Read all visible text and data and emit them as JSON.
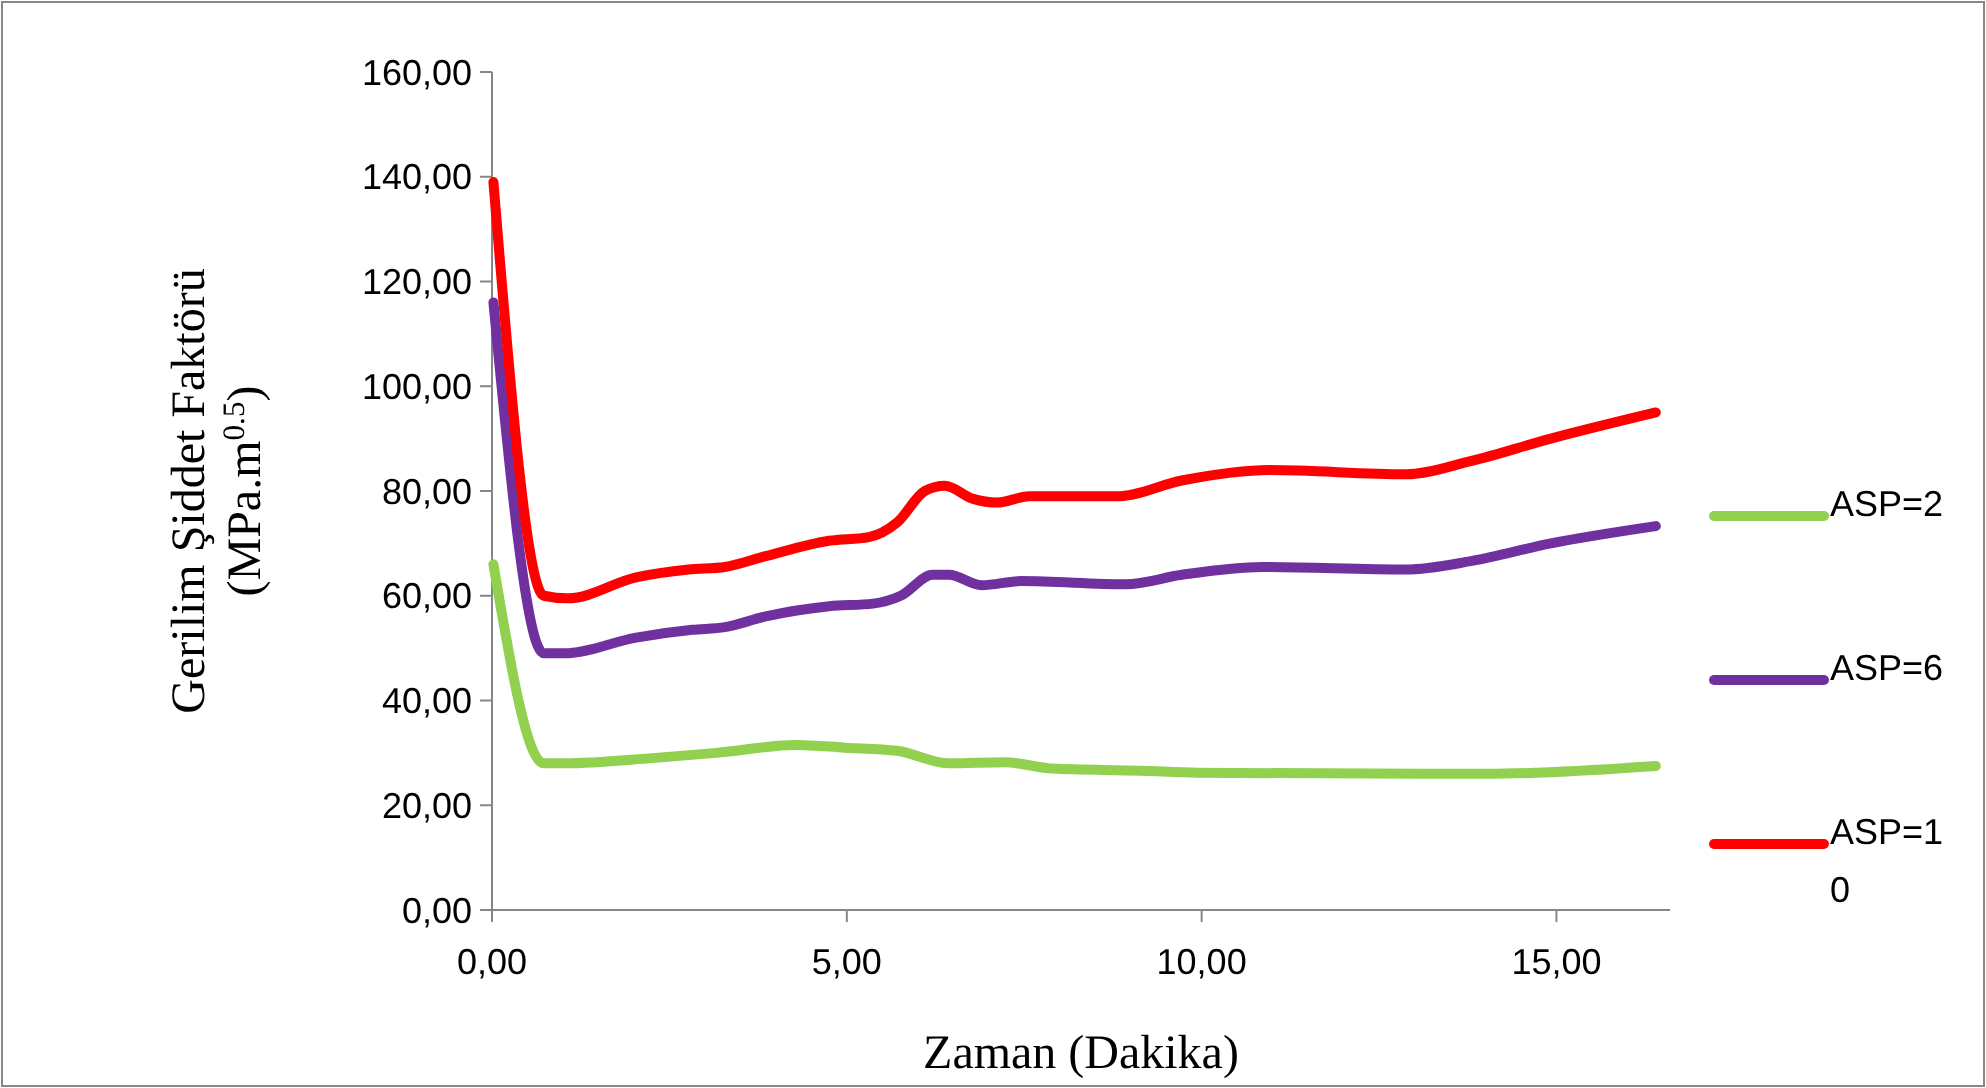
{
  "chart_data": {
    "type": "line",
    "xlabel": "Zaman (Dakika)",
    "ylabel": "Gerilim Şiddet Faktörü (MPa.m$^{0.5}$)",
    "xlim": [
      0,
      16.6
    ],
    "xticks": [
      {
        "value": 0,
        "label": "0,00"
      },
      {
        "value": 5,
        "label": "5,00"
      },
      {
        "value": 10,
        "label": "10,00"
      },
      {
        "value": 15,
        "label": "15,00"
      }
    ],
    "ylim": [
      0,
      160
    ],
    "yticks": [
      {
        "value": 0,
        "label": "0,00"
      },
      {
        "value": 20,
        "label": "20,00"
      },
      {
        "value": 40,
        "label": "40,00"
      },
      {
        "value": 60,
        "label": "60,00"
      },
      {
        "value": 80,
        "label": "80,00"
      },
      {
        "value": 100,
        "label": "100,00"
      },
      {
        "value": 120,
        "label": "120,00"
      },
      {
        "value": 140,
        "label": "140,00"
      },
      {
        "value": 160,
        "label": "160,00"
      }
    ],
    "grid": false,
    "legend": "right",
    "marker": "none",
    "line_style": "solid",
    "series": [
      {
        "name": "ASP=2",
        "color": "#92d050",
        "x": [
          0.02,
          0.73,
          1.02,
          2.26,
          3.16,
          4.29,
          4.97,
          5.71,
          6.44,
          7.23,
          7.9,
          9.15,
          9.94,
          13.1,
          14.02,
          16.4
        ],
        "values": [
          66,
          28,
          28,
          29,
          30,
          31.5,
          31,
          30.4,
          28,
          28.2,
          27,
          26.6,
          26.2,
          26,
          26,
          27.5
        ]
      },
      {
        "name": "ASP=6",
        "color": "#7030a0",
        "x": [
          0.02,
          0.73,
          1.02,
          2.03,
          2.82,
          3.28,
          3.84,
          4.75,
          5.37,
          5.76,
          6.21,
          6.44,
          6.9,
          7.46,
          8.93,
          9.72,
          10.85,
          12.88,
          13.79,
          14.92,
          16.4
        ],
        "values": [
          116,
          49,
          49,
          52,
          53.5,
          54,
          56,
          58,
          58.5,
          60,
          64,
          64,
          62,
          62.8,
          62.2,
          64,
          65.5,
          65,
          66.6,
          70,
          73.3
        ]
      },
      {
        "name": "ASP=10",
        "color": "#ff0000",
        "x": [
          0.02,
          0.73,
          1.07,
          2.03,
          2.77,
          3.28,
          3.84,
          4.75,
          5.31,
          5.71,
          6.1,
          6.38,
          6.78,
          7.12,
          7.57,
          8.81,
          9.72,
          10.96,
          12.88,
          13.79,
          14.92,
          16.4
        ],
        "values": [
          139,
          60,
          59.5,
          63.5,
          65,
          65.5,
          67.5,
          70.5,
          71.2,
          74,
          80,
          81,
          78.5,
          77.8,
          79,
          79,
          82,
          84,
          83.2,
          85.7,
          90,
          95
        ]
      }
    ]
  }
}
